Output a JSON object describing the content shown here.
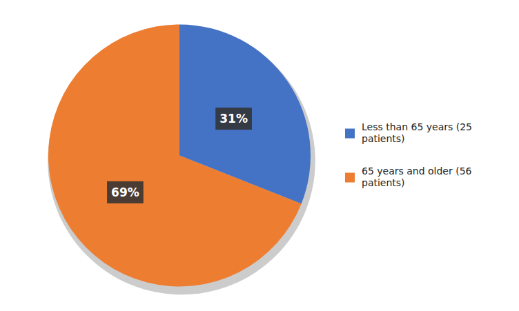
{
  "chart_data": {
    "type": "pie",
    "categories": [
      "Less than 65 years (25\npatients)",
      "65 years and older (56\npatients)"
    ],
    "values": [
      31,
      69
    ],
    "value_labels": [
      "31%",
      "69%"
    ],
    "colors": [
      "#4472C4",
      "#ED7D31"
    ],
    "data_labels": true,
    "legend": "right"
  }
}
